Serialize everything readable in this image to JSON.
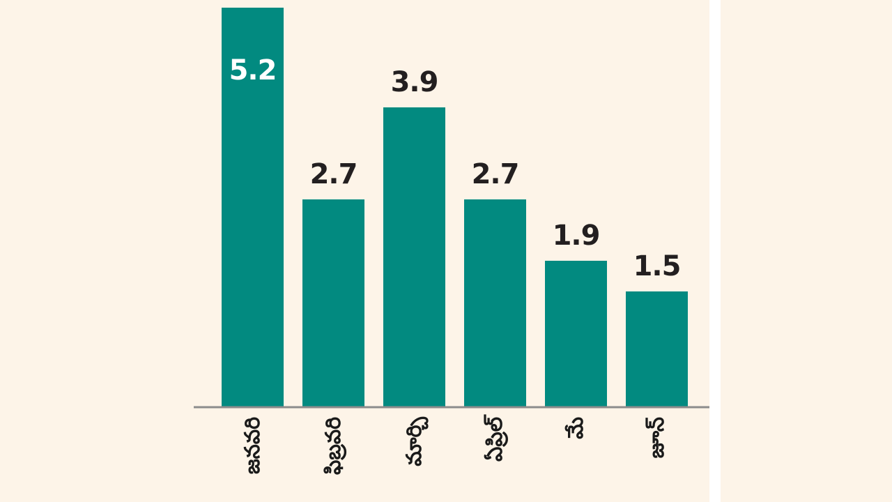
{
  "chart_data": {
    "type": "bar",
    "title": "",
    "xlabel": "",
    "ylabel": "",
    "categories": [
      "జనవరి",
      "ఫిబ్రవరి",
      "మార్చి",
      "ఏప్రిల్",
      "మే",
      "జూన్"
    ],
    "values": [
      5.2,
      2.7,
      3.9,
      2.7,
      1.9,
      1.5
    ],
    "value_labels": [
      "5.2",
      "2.7",
      "3.9",
      "2.7",
      "1.9",
      "1.5"
    ],
    "ylim": [
      0,
      5.2
    ],
    "grid": false,
    "legend": "none",
    "colors": {
      "bar": "#028a80",
      "value_label": "#231f20",
      "value_label_inside": "#ffffff",
      "axis": "#8c8c8c",
      "background": "#fdf4e8"
    }
  }
}
